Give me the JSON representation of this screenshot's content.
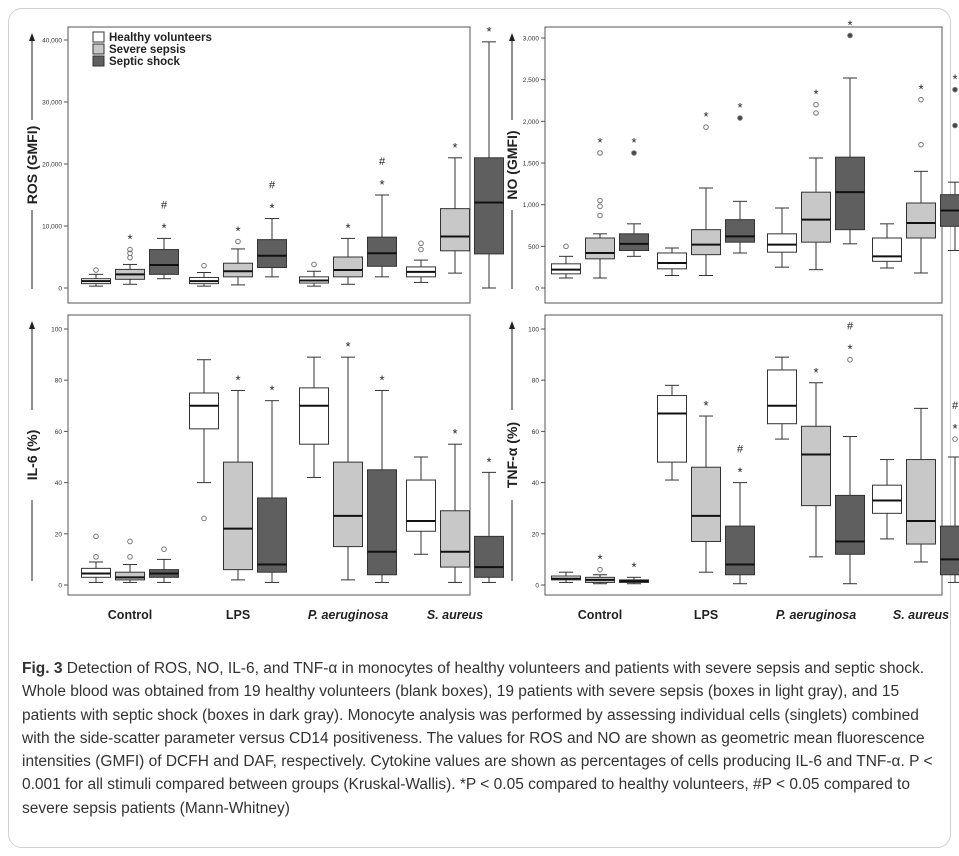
{
  "legend": {
    "healthy": "Healthy volunteers",
    "severe": "Severe sepsis",
    "shock": "Septic shock"
  },
  "colors": {
    "healthy": "#ffffff",
    "severe": "#c8c8c8",
    "shock": "#5f5f5f",
    "frame": "#cfcfcf",
    "caption_text": "#333333"
  },
  "caption": {
    "fig_label": "Fig. 3",
    "text": "Detection of ROS, NO, IL-6, and TNF-α in monocytes of healthy volunteers and patients with severe sepsis and septic shock. Whole blood was obtained from 19 healthy volunteers (blank boxes), 19 patients with severe sepsis (boxes in light gray), and 15 patients with septic shock (boxes in dark gray). Monocyte analysis was performed by assessing individual cells (singlets) combined with the side-scatter parameter versus CD14 positiveness. The values for ROS and NO are shown as geometric mean fluorescence intensities (GMFI) of DCFH and DAF, respectively. Cytokine values are shown as percentages of cells producing IL-6 and TNF-α. P < 0.001 for all stimuli compared between groups (Kruskal-Wallis). *P < 0.05 compared to healthy volunteers, #P < 0.05 compared to severe sepsis patients (Mann-Whitney)"
  },
  "chart_data": [
    {
      "type": "box",
      "ylabel": "ROS (GMFI)",
      "ylim": [
        0,
        40000
      ],
      "yticks": [
        "0",
        "10,000",
        "20,000",
        "30,000",
        "40,000"
      ],
      "ytick_values": [
        0,
        10000,
        20000,
        30000,
        40000
      ],
      "categories": [
        "Control",
        "LPS",
        "P. aeruginosa",
        "S. aureus"
      ],
      "series": [
        {
          "name": "Healthy volunteers",
          "boxes": [
            {
              "min": 300,
              "q1": 700,
              "median": 1100,
              "q3": 1500,
              "max": 2200,
              "outliers": [
                2900
              ],
              "marks": []
            },
            {
              "min": 300,
              "q1": 700,
              "median": 1100,
              "q3": 1700,
              "max": 2500,
              "outliers": [
                3600
              ],
              "marks": []
            },
            {
              "min": 300,
              "q1": 800,
              "median": 1200,
              "q3": 1800,
              "max": 2700,
              "outliers": [
                3800
              ],
              "marks": []
            },
            {
              "min": 900,
              "q1": 1800,
              "median": 2600,
              "q3": 3400,
              "max": 4500,
              "outliers": [
                6200,
                7200
              ],
              "marks": []
            }
          ]
        },
        {
          "name": "Severe sepsis",
          "boxes": [
            {
              "min": 600,
              "q1": 1400,
              "median": 2200,
              "q3": 3000,
              "max": 3800,
              "outliers": [
                4900,
                5600,
                6200
              ],
              "marks": [
                "*"
              ]
            },
            {
              "min": 500,
              "q1": 1800,
              "median": 2700,
              "q3": 4000,
              "max": 6300,
              "outliers": [
                7500
              ],
              "marks": [
                "*"
              ]
            },
            {
              "min": 600,
              "q1": 1800,
              "median": 2900,
              "q3": 5000,
              "max": 8000,
              "outliers": [],
              "marks": [
                "*"
              ]
            },
            {
              "min": 2400,
              "q1": 6000,
              "median": 8300,
              "q3": 12800,
              "max": 21000,
              "outliers": [],
              "marks": [
                "*"
              ]
            }
          ]
        },
        {
          "name": "Septic shock",
          "boxes": [
            {
              "min": 1500,
              "q1": 2200,
              "median": 3700,
              "q3": 6200,
              "max": 8000,
              "outliers": [],
              "marks": [
                "*",
                "#"
              ]
            },
            {
              "min": 1800,
              "q1": 3300,
              "median": 5200,
              "q3": 7800,
              "max": 11200,
              "outliers": [],
              "marks": [
                "*",
                "#"
              ]
            },
            {
              "min": 1800,
              "q1": 3500,
              "median": 5600,
              "q3": 8200,
              "max": 15000,
              "outliers": [],
              "marks": [
                "*",
                "#"
              ]
            },
            {
              "min": 0,
              "q1": 5500,
              "median": 13800,
              "q3": 21000,
              "max": 39700,
              "outliers": [],
              "marks": [
                "*"
              ]
            }
          ]
        }
      ]
    },
    {
      "type": "box",
      "ylabel": "NO (GMFI)",
      "ylim": [
        0,
        3000
      ],
      "yticks": [
        "0",
        "500",
        "1,000",
        "1,500",
        "2,000",
        "2,500",
        "3,000"
      ],
      "ytick_values": [
        0,
        500,
        1000,
        1500,
        2000,
        2500,
        3000
      ],
      "categories": [
        "Control",
        "LPS",
        "P. aeruginosa",
        "S. aureus"
      ],
      "series": [
        {
          "name": "Healthy volunteers",
          "boxes": [
            {
              "min": 120,
              "q1": 170,
              "median": 220,
              "q3": 290,
              "max": 380,
              "outliers": [
                500
              ],
              "marks": []
            },
            {
              "min": 150,
              "q1": 230,
              "median": 300,
              "q3": 420,
              "max": 480,
              "outliers": [],
              "marks": []
            },
            {
              "min": 250,
              "q1": 430,
              "median": 520,
              "q3": 650,
              "max": 960,
              "outliers": [],
              "marks": []
            },
            {
              "min": 240,
              "q1": 320,
              "median": 380,
              "q3": 600,
              "max": 770,
              "outliers": [],
              "marks": []
            }
          ]
        },
        {
          "name": "Severe sepsis",
          "boxes": [
            {
              "min": 120,
              "q1": 350,
              "median": 420,
              "q3": 600,
              "max": 650,
              "outliers": [
                870,
                980,
                1050,
                1620
              ],
              "marks": [
                "*"
              ]
            },
            {
              "min": 150,
              "q1": 400,
              "median": 520,
              "q3": 700,
              "max": 1200,
              "outliers": [
                1930
              ],
              "marks": [
                "*"
              ]
            },
            {
              "min": 220,
              "q1": 550,
              "median": 820,
              "q3": 1150,
              "max": 1560,
              "outliers": [
                2100,
                2200
              ],
              "marks": [
                "*"
              ]
            },
            {
              "min": 180,
              "q1": 600,
              "median": 780,
              "q3": 1020,
              "max": 1400,
              "outliers": [
                1720,
                2260
              ],
              "marks": [
                "*"
              ]
            }
          ]
        },
        {
          "name": "Septic shock",
          "boxes": [
            {
              "min": 380,
              "q1": 450,
              "median": 530,
              "q3": 650,
              "max": 770,
              "outliers": [
                1620
              ],
              "marks": [
                "*"
              ]
            },
            {
              "min": 420,
              "q1": 550,
              "median": 620,
              "q3": 820,
              "max": 1040,
              "outliers": [
                2040
              ],
              "marks": [
                "*"
              ]
            },
            {
              "min": 530,
              "q1": 700,
              "median": 1150,
              "q3": 1570,
              "max": 2520,
              "outliers": [
                3030
              ],
              "marks": [
                "*"
              ]
            },
            {
              "min": 450,
              "q1": 740,
              "median": 930,
              "q3": 1120,
              "max": 1270,
              "outliers": [
                1950,
                2380
              ],
              "marks": [
                "*"
              ]
            }
          ]
        }
      ]
    },
    {
      "type": "box",
      "ylabel": "IL-6 (%)",
      "ylim": [
        0,
        100
      ],
      "yticks": [
        "0",
        "20",
        "40",
        "60",
        "80",
        "100"
      ],
      "ytick_values": [
        0,
        20,
        40,
        60,
        80,
        100
      ],
      "categories": [
        "Control",
        "LPS",
        "P. aeruginosa",
        "S. aureus"
      ],
      "series": [
        {
          "name": "Healthy volunteers",
          "boxes": [
            {
              "min": 1,
              "q1": 3,
              "median": 4.5,
              "q3": 6.5,
              "max": 9,
              "outliers": [
                11,
                19
              ],
              "marks": []
            },
            {
              "min": 40,
              "q1": 61,
              "median": 70,
              "q3": 75,
              "max": 88,
              "outliers": [
                26
              ],
              "marks": []
            },
            {
              "min": 42,
              "q1": 55,
              "median": 70,
              "q3": 77,
              "max": 89,
              "outliers": [],
              "marks": []
            },
            {
              "min": 12,
              "q1": 21,
              "median": 25,
              "q3": 41,
              "max": 50,
              "outliers": [],
              "marks": []
            }
          ]
        },
        {
          "name": "Severe sepsis",
          "boxes": [
            {
              "min": 1,
              "q1": 2,
              "median": 3,
              "q3": 5,
              "max": 8,
              "outliers": [
                11,
                17
              ],
              "marks": []
            },
            {
              "min": 2,
              "q1": 6,
              "median": 22,
              "q3": 48,
              "max": 76,
              "outliers": [],
              "marks": [
                "*"
              ]
            },
            {
              "min": 2,
              "q1": 15,
              "median": 27,
              "q3": 48,
              "max": 89,
              "outliers": [],
              "marks": [
                "*"
              ]
            },
            {
              "min": 1,
              "q1": 7,
              "median": 13,
              "q3": 29,
              "max": 55,
              "outliers": [],
              "marks": [
                "*"
              ]
            }
          ]
        },
        {
          "name": "Septic shock",
          "boxes": [
            {
              "min": 1,
              "q1": 3,
              "median": 4.5,
              "q3": 6,
              "max": 10,
              "outliers": [
                14
              ],
              "marks": []
            },
            {
              "min": 1,
              "q1": 5,
              "median": 8,
              "q3": 34,
              "max": 72,
              "outliers": [],
              "marks": [
                "*"
              ]
            },
            {
              "min": 1,
              "q1": 4,
              "median": 13,
              "q3": 45,
              "max": 76,
              "outliers": [],
              "marks": [
                "*"
              ]
            },
            {
              "min": 1,
              "q1": 3,
              "median": 7,
              "q3": 19,
              "max": 44,
              "outliers": [],
              "marks": [
                "*"
              ]
            }
          ]
        }
      ]
    },
    {
      "type": "box",
      "ylabel": "TNF-α (%)",
      "ylim": [
        0,
        100
      ],
      "yticks": [
        "0",
        "20",
        "40",
        "60",
        "80",
        "100"
      ],
      "ytick_values": [
        0,
        20,
        40,
        60,
        80,
        100
      ],
      "categories": [
        "Control",
        "LPS",
        "P. aeruginosa",
        "S. aureus"
      ],
      "series": [
        {
          "name": "Healthy volunteers",
          "boxes": [
            {
              "min": 1,
              "q1": 2,
              "median": 2.5,
              "q3": 3.5,
              "max": 5,
              "outliers": [],
              "marks": []
            },
            {
              "min": 41,
              "q1": 48,
              "median": 67,
              "q3": 74,
              "max": 78,
              "outliers": [],
              "marks": []
            },
            {
              "min": 57,
              "q1": 63,
              "median": 70,
              "q3": 84,
              "max": 89,
              "outliers": [],
              "marks": []
            },
            {
              "min": 18,
              "q1": 28,
              "median": 33,
              "q3": 39,
              "max": 49,
              "outliers": [],
              "marks": []
            }
          ]
        },
        {
          "name": "Severe sepsis",
          "boxes": [
            {
              "min": 0.5,
              "q1": 1,
              "median": 2,
              "q3": 3,
              "max": 4,
              "outliers": [
                6
              ],
              "marks": [
                "*"
              ]
            },
            {
              "min": 5,
              "q1": 17,
              "median": 27,
              "q3": 46,
              "max": 66,
              "outliers": [],
              "marks": [
                "*"
              ]
            },
            {
              "min": 11,
              "q1": 31,
              "median": 51,
              "q3": 62,
              "max": 79,
              "outliers": [],
              "marks": [
                "*"
              ]
            },
            {
              "min": 9,
              "q1": 16,
              "median": 25,
              "q3": 49,
              "max": 69,
              "outliers": [],
              "marks": []
            }
          ]
        },
        {
          "name": "Septic shock",
          "boxes": [
            {
              "min": 0.5,
              "q1": 1,
              "median": 1.5,
              "q3": 2,
              "max": 3,
              "outliers": [],
              "marks": [
                "*"
              ]
            },
            {
              "min": 0.5,
              "q1": 4,
              "median": 8,
              "q3": 23,
              "max": 40,
              "outliers": [],
              "marks": [
                "*",
                "#"
              ]
            },
            {
              "min": 0.5,
              "q1": 12,
              "median": 17,
              "q3": 35,
              "max": 58,
              "outliers": [
                88
              ],
              "marks": [
                "*",
                "#"
              ]
            },
            {
              "min": 1,
              "q1": 4,
              "median": 10,
              "q3": 23,
              "max": 50,
              "outliers": [
                57
              ],
              "marks": [
                "*",
                "#"
              ]
            }
          ]
        }
      ]
    }
  ]
}
